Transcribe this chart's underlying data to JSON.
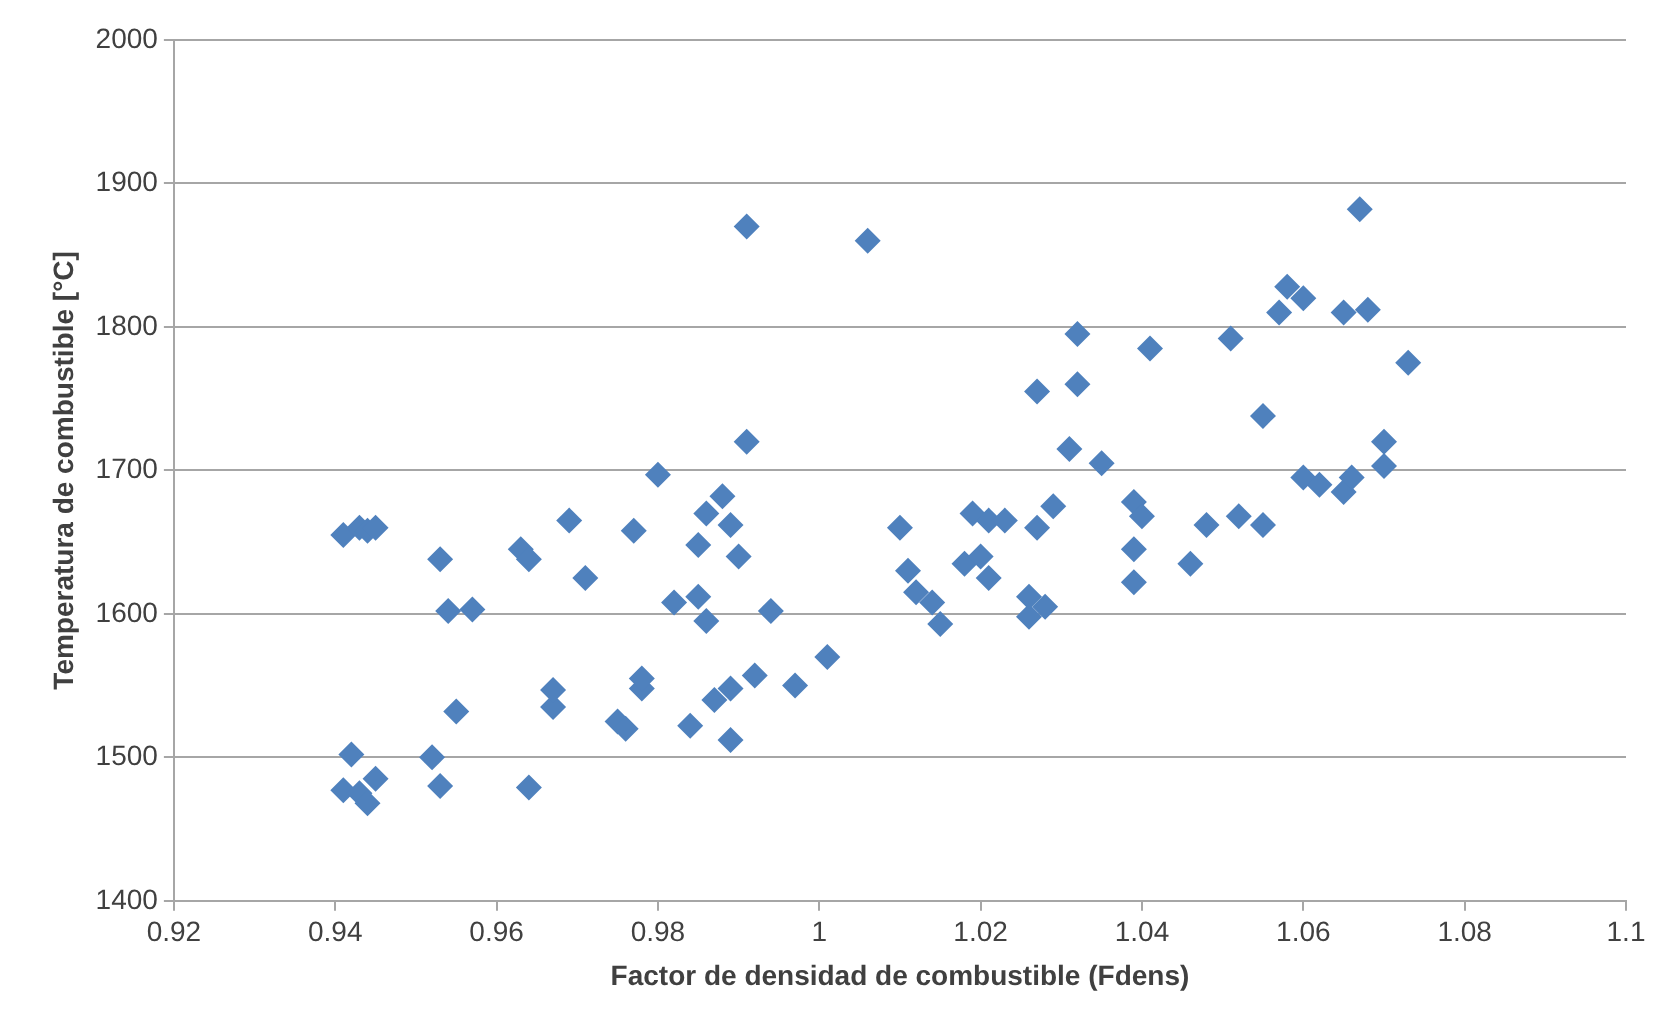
{
  "chart_data": {
    "type": "scatter",
    "xlabel": "Factor de densidad de combustible (Fdens)",
    "ylabel": "Temperatura de combustible [°C]",
    "xlim": [
      0.92,
      1.1
    ],
    "xticks": [
      0.92,
      0.94,
      0.96,
      0.98,
      1,
      1.02,
      1.04,
      1.06,
      1.08,
      1.1
    ],
    "ylim": [
      1400,
      2000
    ],
    "yticks": [
      1400,
      1500,
      1600,
      1700,
      1800,
      1900,
      2000
    ],
    "grid": "y",
    "legend": false,
    "marker": "diamond",
    "series": [
      {
        "color": "#4f81bd",
        "x": [
          0.941,
          0.943,
          0.944,
          0.945,
          0.941,
          0.942,
          0.943,
          0.944,
          0.945,
          0.953,
          0.954,
          0.955,
          0.952,
          0.953,
          0.957,
          0.963,
          0.964,
          0.964,
          0.967,
          0.967,
          0.969,
          0.971,
          0.975,
          0.976,
          0.977,
          0.978,
          0.978,
          0.98,
          0.982,
          0.984,
          0.985,
          0.985,
          0.986,
          0.986,
          0.987,
          0.988,
          0.989,
          0.989,
          0.989,
          0.99,
          0.991,
          0.991,
          0.992,
          0.994,
          0.997,
          1.001,
          1.006,
          1.01,
          1.011,
          1.012,
          1.014,
          1.015,
          1.018,
          1.019,
          1.02,
          1.021,
          1.021,
          1.023,
          1.026,
          1.026,
          1.027,
          1.027,
          1.028,
          1.029,
          1.031,
          1.032,
          1.032,
          1.035,
          1.039,
          1.039,
          1.039,
          1.04,
          1.041,
          1.046,
          1.048,
          1.051,
          1.052,
          1.055,
          1.055,
          1.057,
          1.058,
          1.06,
          1.06,
          1.062,
          1.065,
          1.065,
          1.066,
          1.067,
          1.068,
          1.07,
          1.07,
          1.073
        ],
        "values": [
          1655,
          1660,
          1658,
          1660,
          1477,
          1502,
          1475,
          1468,
          1485,
          1638,
          1602,
          1532,
          1500,
          1480,
          1603,
          1645,
          1638,
          1479,
          1535,
          1547,
          1665,
          1625,
          1525,
          1520,
          1658,
          1548,
          1555,
          1697,
          1608,
          1522,
          1612,
          1648,
          1595,
          1670,
          1540,
          1682,
          1548,
          1512,
          1662,
          1640,
          1720,
          1870,
          1557,
          1602,
          1550,
          1570,
          1860,
          1660,
          1630,
          1615,
          1608,
          1593,
          1635,
          1670,
          1640,
          1665,
          1625,
          1665,
          1598,
          1612,
          1755,
          1660,
          1605,
          1675,
          1715,
          1795,
          1760,
          1705,
          1622,
          1645,
          1678,
          1668,
          1785,
          1635,
          1662,
          1792,
          1668,
          1738,
          1662,
          1810,
          1828,
          1820,
          1695,
          1690,
          1685,
          1810,
          1695,
          1882,
          1812,
          1720,
          1703,
          1775
        ]
      }
    ]
  }
}
